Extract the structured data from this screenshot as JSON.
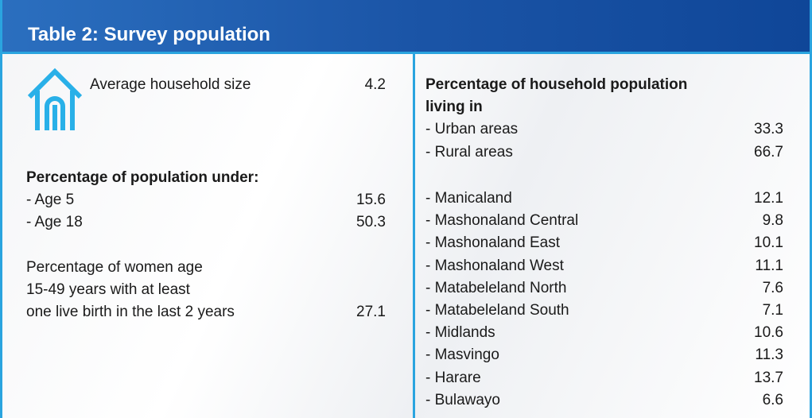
{
  "title": "Table 2: Survey population",
  "left": {
    "household": {
      "label": "Average household size",
      "value": 4.2
    },
    "under": {
      "heading": "Percentage of population under:",
      "rows": [
        {
          "label": "- Age 5",
          "value": 15.6
        },
        {
          "label": "- Age 18",
          "value": 50.3
        }
      ]
    },
    "women": {
      "lines": [
        "Percentage of women age",
        "15-49 years with at least",
        "one live birth in the last 2 years"
      ],
      "value": 27.1
    }
  },
  "right": {
    "heading": [
      "Percentage of household population",
      "living in"
    ],
    "areas": [
      {
        "label": "- Urban areas",
        "value": 33.3
      },
      {
        "label": "- Rural areas",
        "value": 66.7
      }
    ],
    "provinces": [
      {
        "label": "- Manicaland",
        "value": 12.1
      },
      {
        "label": "- Mashonaland Central",
        "value": 9.8
      },
      {
        "label": "- Mashonaland East",
        "value": 10.1
      },
      {
        "label": "- Mashonaland West",
        "value": 11.1
      },
      {
        "label": "- Matabeleland North",
        "value": 7.6
      },
      {
        "label": "- Matabeleland South",
        "value": 7.1
      },
      {
        "label": "- Midlands",
        "value": 10.6
      },
      {
        "label": "- Masvingo",
        "value": 11.3
      },
      {
        "label": "- Harare",
        "value": 13.7
      },
      {
        "label": "- Bulawayo",
        "value": 6.6
      }
    ]
  }
}
